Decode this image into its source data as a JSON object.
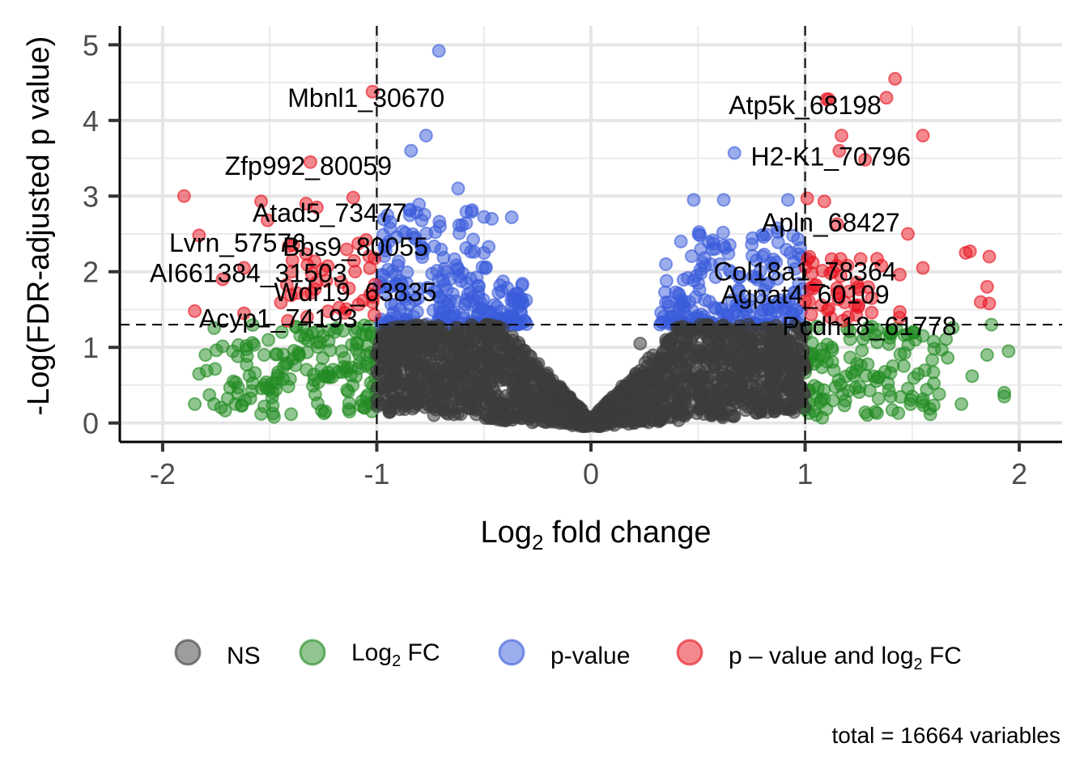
{
  "chart_data": {
    "type": "scatter",
    "subtype": "volcano",
    "title": "",
    "xlabel": "Log2 fold change",
    "xlabel_parts": {
      "pre": "Log",
      "sub": "2",
      "post": " fold change"
    },
    "ylabel": "-Log(FDR-adjusted p value)",
    "xlim": [
      -2.2,
      2.2
    ],
    "ylim": [
      -0.25,
      5.25
    ],
    "x_ticks": [
      -2,
      -1,
      0,
      1,
      2
    ],
    "x_tick_labels": [
      "-2",
      "-1",
      "0",
      "1",
      "2"
    ],
    "y_ticks": [
      0,
      1,
      2,
      3,
      4,
      5
    ],
    "y_tick_labels": [
      "0",
      "1",
      "2",
      "3",
      "4",
      "5"
    ],
    "x_minor_grid": [
      -1.5,
      -0.5,
      0.5,
      1.5
    ],
    "y_minor_grid": [
      0.5,
      1.5,
      2.5,
      3.5,
      4.5
    ],
    "grid": true,
    "fc_cutoff": 1,
    "p_cutoff": 1.3,
    "caption": "total = 16664 variables",
    "legend_position": "bottom",
    "legend": [
      {
        "key": "NS",
        "label": "NS",
        "color": "#3c3c3c"
      },
      {
        "key": "FC",
        "label_parts": {
          "pre": "Log",
          "sub": "2",
          "post": " FC"
        },
        "label": "Log2 FC",
        "color": "#228b22"
      },
      {
        "key": "P",
        "label": "p-value",
        "color": "#3a5bdb"
      },
      {
        "key": "FCP",
        "label_parts": {
          "pre": "p – value and log",
          "sub": "2",
          "post": " FC"
        },
        "label": "p – value and log2 FC",
        "color": "#e8131f"
      }
    ],
    "labeled_points": [
      {
        "label": "Mbnl1_30670",
        "x": -1.02,
        "y": 4.38,
        "category": "FCP"
      },
      {
        "label": "Zfp992_80059",
        "x": -1.31,
        "y": 3.45,
        "category": "FCP"
      },
      {
        "label": "Atad5_73477",
        "x": -1.28,
        "y": 2.85,
        "category": "FCP"
      },
      {
        "label": "Lvrn_57576",
        "x": -1.83,
        "y": 2.48,
        "category": "FCP"
      },
      {
        "label": "Bbs9_80055",
        "x": -1.05,
        "y": 2.42,
        "category": "FCP"
      },
      {
        "label": "AI661384_31503",
        "x": -1.62,
        "y": 2.05,
        "category": "FCP"
      },
      {
        "label": "Wdr19_63835",
        "x": -1.13,
        "y": 1.78,
        "category": "FCP"
      },
      {
        "label": "Acyp1_74193",
        "x": -1.62,
        "y": 1.45,
        "category": "FCP"
      },
      {
        "label": "Atp5k_68198",
        "x": 1.11,
        "y": 4.28,
        "category": "FCP"
      },
      {
        "label": "H2-K1_70796",
        "x": 1.28,
        "y": 3.48,
        "category": "FCP"
      },
      {
        "label": "Apln_68427",
        "x": 1.15,
        "y": 2.63,
        "category": "FCP"
      },
      {
        "label": "Col18a1_78364",
        "x": 1.13,
        "y": 2.0,
        "category": "FCP"
      },
      {
        "label": "Agpat4_60109",
        "x": 1.15,
        "y": 1.72,
        "category": "FCP"
      },
      {
        "label": "Pcdh18_61778",
        "x": 1.2,
        "y": 1.4,
        "category": "FCP"
      }
    ],
    "label_text_positions": [
      {
        "label": "Mbnl1_30670",
        "tx": -1.05,
        "ty": 4.3
      },
      {
        "label": "Zfp992_80059",
        "tx": -1.32,
        "ty": 3.4
      },
      {
        "label": "Atad5_73477",
        "tx": -1.22,
        "ty": 2.78
      },
      {
        "label": "Lvrn_57576",
        "tx": -1.65,
        "ty": 2.38
      },
      {
        "label": "Bbs9_80055",
        "tx": -1.1,
        "ty": 2.33
      },
      {
        "label": "AI661384_31503",
        "tx": -1.6,
        "ty": 1.98
      },
      {
        "label": "Wdr19_63835",
        "tx": -1.1,
        "ty": 1.73
      },
      {
        "label": "Acyp1_74193",
        "tx": -1.46,
        "ty": 1.38
      },
      {
        "label": "Atp5k_68198",
        "tx": 1.0,
        "ty": 4.2
      },
      {
        "label": "H2-K1_70796",
        "tx": 1.12,
        "ty": 3.52
      },
      {
        "label": "Apln_68427",
        "tx": 1.12,
        "ty": 2.65
      },
      {
        "label": "Col18a1_78364",
        "tx": 1.0,
        "ty": 2.0
      },
      {
        "label": "Agpat4_60109",
        "tx": 1.0,
        "ty": 1.7
      },
      {
        "label": "Pcdh18_61778",
        "tx": 1.3,
        "ty": 1.28
      }
    ],
    "outlier_points": [
      {
        "x": -0.71,
        "y": 4.92,
        "category": "P"
      },
      {
        "x": -0.77,
        "y": 3.8,
        "category": "P"
      },
      {
        "x": -0.84,
        "y": 3.6,
        "category": "P"
      },
      {
        "x": -0.62,
        "y": 3.1,
        "category": "P"
      },
      {
        "x": -0.37,
        "y": 2.72,
        "category": "P"
      },
      {
        "x": 0.67,
        "y": 3.57,
        "category": "P"
      },
      {
        "x": 0.48,
        "y": 2.95,
        "category": "P"
      },
      {
        "x": 0.62,
        "y": 2.95,
        "category": "P"
      },
      {
        "x": 0.92,
        "y": 2.95,
        "category": "P"
      },
      {
        "x": 0.42,
        "y": 2.4,
        "category": "P"
      },
      {
        "x": 0.35,
        "y": 2.1,
        "category": "P"
      },
      {
        "x": -1.9,
        "y": 3.0,
        "category": "FCP"
      },
      {
        "x": -1.54,
        "y": 2.93,
        "category": "FCP"
      },
      {
        "x": -1.51,
        "y": 2.68,
        "category": "FCP"
      },
      {
        "x": -1.33,
        "y": 2.9,
        "category": "FCP"
      },
      {
        "x": -1.11,
        "y": 2.98,
        "category": "FCP"
      },
      {
        "x": -1.72,
        "y": 1.9,
        "category": "FCP"
      },
      {
        "x": -1.85,
        "y": 1.48,
        "category": "FCP"
      },
      {
        "x": 1.42,
        "y": 4.55,
        "category": "FCP"
      },
      {
        "x": 1.38,
        "y": 4.3,
        "category": "FCP"
      },
      {
        "x": 1.1,
        "y": 4.28,
        "category": "FCP"
      },
      {
        "x": 1.17,
        "y": 3.8,
        "category": "FCP"
      },
      {
        "x": 1.16,
        "y": 3.6,
        "category": "FCP"
      },
      {
        "x": 1.55,
        "y": 3.8,
        "category": "FCP"
      },
      {
        "x": 1.01,
        "y": 2.97,
        "category": "FCP"
      },
      {
        "x": 1.09,
        "y": 2.93,
        "category": "FCP"
      },
      {
        "x": 1.48,
        "y": 2.5,
        "category": "FCP"
      },
      {
        "x": 1.75,
        "y": 2.25,
        "category": "FCP"
      },
      {
        "x": 1.77,
        "y": 2.27,
        "category": "FCP"
      },
      {
        "x": 1.86,
        "y": 2.2,
        "category": "FCP"
      },
      {
        "x": 1.55,
        "y": 2.05,
        "category": "FCP"
      },
      {
        "x": 1.85,
        "y": 1.8,
        "category": "FCP"
      },
      {
        "x": 1.82,
        "y": 1.6,
        "category": "FCP"
      },
      {
        "x": 1.86,
        "y": 1.58,
        "category": "FCP"
      },
      {
        "x": 0.23,
        "y": 1.05,
        "category": "NS"
      },
      {
        "x": 1.87,
        "y": 1.3,
        "category": "FC"
      },
      {
        "x": 1.95,
        "y": 0.95,
        "category": "FC"
      },
      {
        "x": 1.85,
        "y": 0.9,
        "category": "FC"
      },
      {
        "x": 1.93,
        "y": 0.4,
        "category": "FC"
      },
      {
        "x": 1.93,
        "y": 0.35,
        "category": "FC"
      },
      {
        "x": 1.73,
        "y": 0.25,
        "category": "FC"
      },
      {
        "x": 1.78,
        "y": 0.62,
        "category": "FC"
      },
      {
        "x": -1.85,
        "y": 0.25,
        "category": "FC"
      },
      {
        "x": -1.76,
        "y": 0.25,
        "category": "FC"
      },
      {
        "x": -1.66,
        "y": 0.25,
        "category": "FC"
      },
      {
        "x": -1.54,
        "y": 0.12,
        "category": "FC"
      },
      {
        "x": -1.48,
        "y": 0.08,
        "category": "FC"
      },
      {
        "x": -1.8,
        "y": 0.9,
        "category": "FC"
      },
      {
        "x": -1.83,
        "y": 0.65,
        "category": "FC"
      },
      {
        "x": -1.67,
        "y": 0.55,
        "category": "FC"
      },
      {
        "x": 1.08,
        "y": 0.07,
        "category": "FC"
      },
      {
        "x": 1.4,
        "y": 0.35,
        "category": "FC"
      },
      {
        "x": 1.5,
        "y": 0.35,
        "category": "FC"
      }
    ],
    "clusters": [
      {
        "category": "NS",
        "side": "left",
        "x_range": [
          -1.0,
          -0.01
        ],
        "y_max": 1.3,
        "count": 900
      },
      {
        "category": "NS",
        "side": "right",
        "x_range": [
          0.01,
          1.0
        ],
        "y_max": 1.3,
        "count": 900
      },
      {
        "category": "P",
        "x_range": [
          -0.99,
          -0.3
        ],
        "y_range": [
          1.3,
          2.9
        ],
        "count": 260
      },
      {
        "category": "P",
        "x_range": [
          0.32,
          0.99
        ],
        "y_range": [
          1.3,
          2.6
        ],
        "count": 200
      },
      {
        "category": "FC",
        "x_range": [
          -1.8,
          -1.0
        ],
        "y_range": [
          0.1,
          1.3
        ],
        "count": 160
      },
      {
        "category": "FC",
        "x_range": [
          1.0,
          1.7
        ],
        "y_range": [
          0.1,
          1.3
        ],
        "count": 130
      },
      {
        "category": "FCP",
        "x_range": [
          -1.45,
          -1.0
        ],
        "y_range": [
          1.35,
          2.4
        ],
        "count": 40
      },
      {
        "category": "FCP",
        "x_range": [
          1.0,
          1.45
        ],
        "y_range": [
          1.35,
          2.2
        ],
        "count": 45
      }
    ]
  }
}
